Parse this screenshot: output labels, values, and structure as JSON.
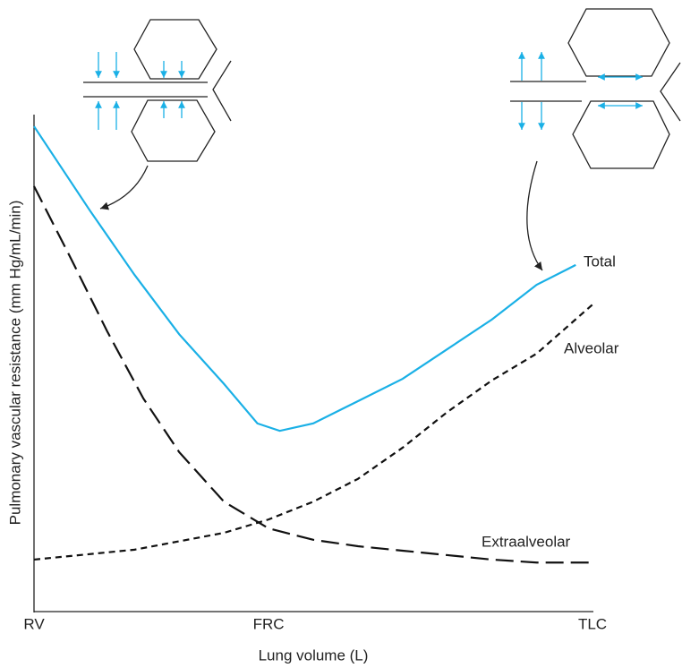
{
  "chart_data": {
    "type": "line",
    "x_label": "Lung volume (L)",
    "y_label": "Pulmonary vascular resistance (mm Hg/mL/min)",
    "xlim": [
      0,
      100
    ],
    "ylim": [
      0,
      100
    ],
    "xticks": [
      {
        "value": 0,
        "label": "RV"
      },
      {
        "value": 42,
        "label": "FRC"
      },
      {
        "value": 100,
        "label": "TLC"
      }
    ],
    "series": [
      {
        "name": "Total",
        "color": "#1ab0e6",
        "dash": "solid",
        "x": [
          0,
          10,
          18,
          26,
          34,
          40,
          44,
          50,
          58,
          66,
          74,
          82,
          90,
          97
        ],
        "values": [
          98,
          81,
          68,
          56,
          46,
          38,
          36.5,
          38,
          42.5,
          47,
          53,
          59,
          66,
          70
        ]
      },
      {
        "name": "Alveolar",
        "color": "#111111",
        "dash": "short",
        "x": [
          0,
          18,
          34,
          42,
          50,
          58,
          66,
          74,
          82,
          90,
          100
        ],
        "values": [
          10.5,
          12.5,
          15.9,
          18.6,
          22.2,
          26.8,
          33.1,
          40.3,
          46.7,
          52.1,
          62
        ]
      },
      {
        "name": "Extraalveolar",
        "color": "#111111",
        "dash": "long",
        "x": [
          0,
          6.7,
          13.1,
          19.6,
          26,
          34,
          42,
          50,
          58,
          66,
          74,
          82,
          90,
          100
        ],
        "values": [
          85.9,
          71.1,
          56.6,
          43,
          32.2,
          22.2,
          16.8,
          14.5,
          13.2,
          12.3,
          11.4,
          10.5,
          9.9,
          9.9
        ]
      }
    ]
  }
}
